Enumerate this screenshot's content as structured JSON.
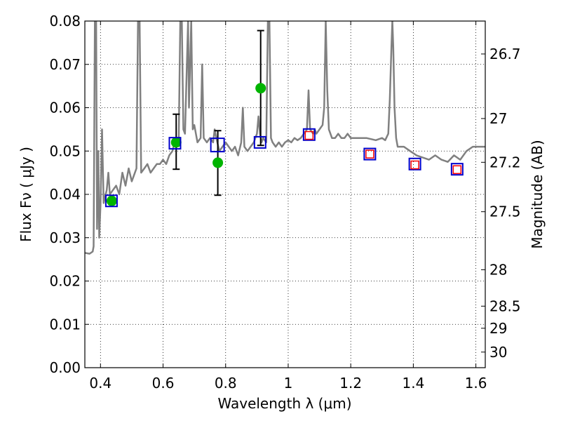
{
  "chart_data": {
    "type": "scatter",
    "xlabel": "Wavelength  λ (μm)",
    "ylabel": "Flux  Fν  ( μJy )",
    "y2label": "Magnitude (AB)",
    "xlim": [
      0.35,
      1.63
    ],
    "ylim": [
      0.0,
      0.08
    ],
    "grid": true,
    "x_ticks": [
      "0.4",
      "0.6",
      "0.8",
      "1",
      "1.2",
      "1.4",
      "1.6"
    ],
    "x_tick_values": [
      0.4,
      0.6,
      0.8,
      1.0,
      1.2,
      1.4,
      1.6
    ],
    "y_ticks": [
      "0.00",
      "0.01",
      "0.02",
      "0.03",
      "0.04",
      "0.05",
      "0.06",
      "0.07",
      "0.08"
    ],
    "y_tick_values": [
      0.0,
      0.01,
      0.02,
      0.03,
      0.04,
      0.05,
      0.06,
      0.07,
      0.08
    ],
    "magnitude_ticks": [
      {
        "label": "26.7",
        "flux": 0.0724
      },
      {
        "label": "27",
        "flux": 0.0575
      },
      {
        "label": "27.2",
        "flux": 0.0474
      },
      {
        "label": "27.5",
        "flux": 0.036
      },
      {
        "label": "28",
        "flux": 0.0226
      },
      {
        "label": "28.5",
        "flux": 0.0142
      },
      {
        "label": "29",
        "flux": 0.0091
      },
      {
        "label": "30",
        "flux": 0.0036
      }
    ],
    "series": [
      {
        "kind": "model-spectrum",
        "color": "#808080",
        "points": [
          [
            0.35,
            0.0265
          ],
          [
            0.365,
            0.0263
          ],
          [
            0.375,
            0.0268
          ],
          [
            0.378,
            0.028
          ],
          [
            0.382,
            0.08
          ],
          [
            0.386,
            0.08
          ],
          [
            0.389,
            0.032
          ],
          [
            0.393,
            0.05
          ],
          [
            0.396,
            0.03
          ],
          [
            0.4,
            0.0375
          ],
          [
            0.405,
            0.055
          ],
          [
            0.41,
            0.038
          ],
          [
            0.42,
            0.041
          ],
          [
            0.425,
            0.045
          ],
          [
            0.43,
            0.04
          ],
          [
            0.44,
            0.041
          ],
          [
            0.45,
            0.042
          ],
          [
            0.46,
            0.04
          ],
          [
            0.47,
            0.045
          ],
          [
            0.48,
            0.042
          ],
          [
            0.49,
            0.046
          ],
          [
            0.5,
            0.043
          ],
          [
            0.51,
            0.045
          ],
          [
            0.515,
            0.046
          ],
          [
            0.52,
            0.08
          ],
          [
            0.525,
            0.08
          ],
          [
            0.53,
            0.045
          ],
          [
            0.54,
            0.046
          ],
          [
            0.55,
            0.047
          ],
          [
            0.56,
            0.045
          ],
          [
            0.57,
            0.046
          ],
          [
            0.58,
            0.047
          ],
          [
            0.59,
            0.047
          ],
          [
            0.6,
            0.048
          ],
          [
            0.61,
            0.047
          ],
          [
            0.62,
            0.049
          ],
          [
            0.63,
            0.05
          ],
          [
            0.64,
            0.053
          ],
          [
            0.65,
            0.052
          ],
          [
            0.655,
            0.08
          ],
          [
            0.66,
            0.08
          ],
          [
            0.665,
            0.055
          ],
          [
            0.67,
            0.054
          ],
          [
            0.68,
            0.08
          ],
          [
            0.683,
            0.06
          ],
          [
            0.69,
            0.08
          ],
          [
            0.695,
            0.055
          ],
          [
            0.7,
            0.056
          ],
          [
            0.71,
            0.052
          ],
          [
            0.72,
            0.053
          ],
          [
            0.725,
            0.07
          ],
          [
            0.73,
            0.053
          ],
          [
            0.74,
            0.052
          ],
          [
            0.75,
            0.053
          ],
          [
            0.76,
            0.052
          ],
          [
            0.765,
            0.055
          ],
          [
            0.77,
            0.053
          ],
          [
            0.78,
            0.05
          ],
          [
            0.79,
            0.051
          ],
          [
            0.8,
            0.052
          ],
          [
            0.81,
            0.051
          ],
          [
            0.82,
            0.05
          ],
          [
            0.83,
            0.051
          ],
          [
            0.84,
            0.049
          ],
          [
            0.85,
            0.052
          ],
          [
            0.855,
            0.06
          ],
          [
            0.86,
            0.051
          ],
          [
            0.87,
            0.05
          ],
          [
            0.88,
            0.051
          ],
          [
            0.89,
            0.052
          ],
          [
            0.9,
            0.054
          ],
          [
            0.905,
            0.058
          ],
          [
            0.91,
            0.054
          ],
          [
            0.915,
            0.052
          ],
          [
            0.92,
            0.053
          ],
          [
            0.93,
            0.052
          ],
          [
            0.935,
            0.08
          ],
          [
            0.94,
            0.08
          ],
          [
            0.945,
            0.053
          ],
          [
            0.95,
            0.052
          ],
          [
            0.96,
            0.051
          ],
          [
            0.97,
            0.052
          ],
          [
            0.98,
            0.051
          ],
          [
            0.99,
            0.052
          ],
          [
            1.0,
            0.0525
          ],
          [
            1.01,
            0.052
          ],
          [
            1.02,
            0.053
          ],
          [
            1.03,
            0.0525
          ],
          [
            1.04,
            0.053
          ],
          [
            1.05,
            0.054
          ],
          [
            1.06,
            0.055
          ],
          [
            1.065,
            0.064
          ],
          [
            1.07,
            0.055
          ],
          [
            1.08,
            0.054
          ],
          [
            1.085,
            0.055
          ],
          [
            1.09,
            0.054
          ],
          [
            1.1,
            0.055
          ],
          [
            1.11,
            0.056
          ],
          [
            1.115,
            0.06
          ],
          [
            1.12,
            0.08
          ],
          [
            1.125,
            0.064
          ],
          [
            1.13,
            0.055
          ],
          [
            1.14,
            0.053
          ],
          [
            1.15,
            0.053
          ],
          [
            1.16,
            0.054
          ],
          [
            1.17,
            0.053
          ],
          [
            1.18,
            0.053
          ],
          [
            1.19,
            0.054
          ],
          [
            1.2,
            0.053
          ],
          [
            1.25,
            0.053
          ],
          [
            1.28,
            0.0525
          ],
          [
            1.3,
            0.053
          ],
          [
            1.31,
            0.0525
          ],
          [
            1.32,
            0.054
          ],
          [
            1.325,
            0.062
          ],
          [
            1.33,
            0.074
          ],
          [
            1.333,
            0.08
          ],
          [
            1.336,
            0.074
          ],
          [
            1.34,
            0.06
          ],
          [
            1.345,
            0.053
          ],
          [
            1.35,
            0.051
          ],
          [
            1.37,
            0.051
          ],
          [
            1.39,
            0.05
          ],
          [
            1.41,
            0.049
          ],
          [
            1.43,
            0.0485
          ],
          [
            1.45,
            0.048
          ],
          [
            1.47,
            0.049
          ],
          [
            1.49,
            0.048
          ],
          [
            1.51,
            0.0475
          ],
          [
            1.53,
            0.049
          ],
          [
            1.55,
            0.048
          ],
          [
            1.57,
            0.05
          ],
          [
            1.59,
            0.051
          ],
          [
            1.61,
            0.051
          ],
          [
            1.63,
            0.051
          ]
        ]
      },
      {
        "kind": "measured-flux",
        "marker": "filled-circle",
        "color": "#00b400",
        "points": [
          {
            "x": 0.436,
            "y": 0.0385
          },
          {
            "x": 0.642,
            "y": 0.052,
            "yerr": [
              0.0458,
              0.0585
            ]
          },
          {
            "x": 0.775,
            "y": 0.0473,
            "yerr": [
              0.0398,
              0.0547
            ]
          },
          {
            "x": 0.912,
            "y": 0.0645,
            "yerr": [
              0.0513,
              0.0778
            ]
          }
        ]
      },
      {
        "kind": "model-bandpass-blue",
        "marker": "open-square",
        "color": "#0000cc",
        "points": [
          {
            "x": 0.435,
            "y": 0.0385
          },
          {
            "x": 0.638,
            "y": 0.0518
          },
          {
            "x": 0.774,
            "y": 0.0514
          },
          {
            "x": 0.91,
            "y": 0.052
          },
          {
            "x": 1.067,
            "y": 0.0538
          },
          {
            "x": 1.261,
            "y": 0.0493
          },
          {
            "x": 1.405,
            "y": 0.047
          },
          {
            "x": 1.54,
            "y": 0.0458
          }
        ]
      },
      {
        "kind": "model-bandpass-red",
        "marker": "open-square",
        "color": "#ff0000",
        "points": [
          {
            "x": 1.067,
            "y": 0.0536
          },
          {
            "x": 1.261,
            "y": 0.0493
          },
          {
            "x": 1.405,
            "y": 0.0468
          },
          {
            "x": 1.54,
            "y": 0.0457
          }
        ]
      }
    ]
  }
}
